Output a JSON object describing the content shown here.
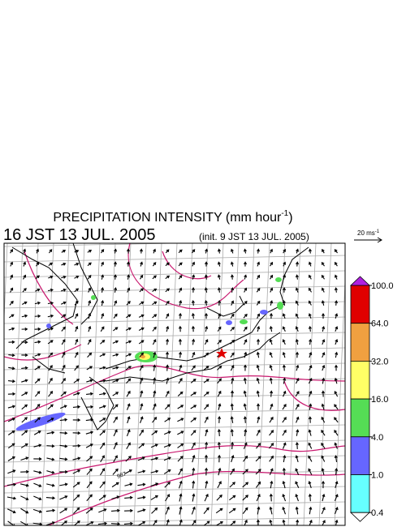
{
  "header": {
    "title": {
      "main": "PRECIPITATION INTENSITY (mm hour",
      "superscript": "-1",
      "close": ")"
    },
    "valid_time": "16 JST 13 JUL. 2005",
    "init_time": "(init. 9 JST 13 JUL. 2005)"
  },
  "wind_scale": {
    "unit": "20 ms",
    "superscript": "-1"
  },
  "map": {
    "contour_label": "987"
  },
  "colorbar": {
    "ticks": [
      {
        "value": 100,
        "label": "100.0"
      },
      {
        "value": 64,
        "label": "64.0"
      },
      {
        "value": 32,
        "label": "32.0"
      },
      {
        "value": 16,
        "label": "16.0"
      },
      {
        "value": 4,
        "label": "4.0"
      },
      {
        "value": 1,
        "label": "1.0"
      },
      {
        "value": 0.4,
        "label": "0.4"
      }
    ],
    "colors": [
      "#e00000",
      "#f0a040",
      "#ffff66",
      "#55dd55",
      "#6666ff",
      "#66ffff"
    ],
    "over_color": "#b020e0",
    "under_color": "#ffffff"
  }
}
